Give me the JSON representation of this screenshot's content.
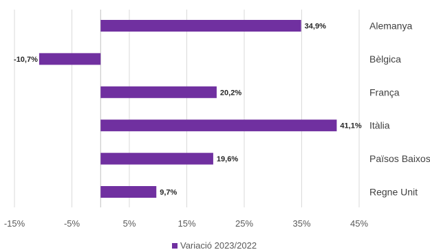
{
  "chart_data": {
    "type": "bar",
    "orientation": "horizontal",
    "categories": [
      "Alemanya",
      "Bèlgica",
      "França",
      "Itàlia",
      "Països Baixos",
      "Regne Unit"
    ],
    "series": [
      {
        "name": "Variació 2023/2022",
        "values": [
          34.9,
          -10.7,
          20.2,
          41.1,
          19.6,
          9.7
        ],
        "labels": [
          "34,9%",
          "-10,7%",
          "20,2%",
          "41,1%",
          "19,6%",
          "9,7%"
        ]
      }
    ],
    "xlim": [
      -15,
      45
    ],
    "xticks": [
      -15,
      -5,
      5,
      15,
      25,
      35,
      45
    ],
    "xtick_labels": [
      "-15%",
      "-5%",
      "5%",
      "15%",
      "25%",
      "35%",
      "45%"
    ],
    "grid": true,
    "legend_position": "bottom",
    "category_labels_side": "right",
    "colors": {
      "bar": "#7030a0",
      "grid": "#d9d9d9"
    }
  }
}
